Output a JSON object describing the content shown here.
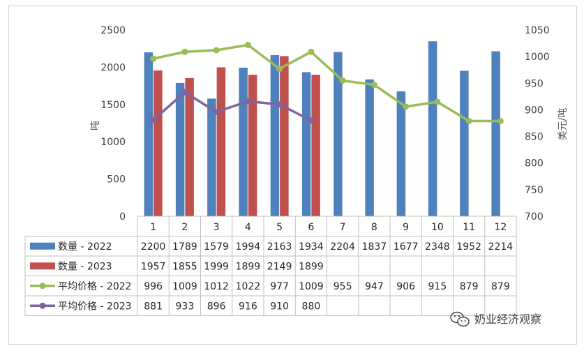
{
  "chart_data": {
    "type": "bar",
    "categories": [
      "1",
      "2",
      "3",
      "4",
      "5",
      "6",
      "7",
      "8",
      "9",
      "10",
      "11",
      "12"
    ],
    "ylabel": "吨",
    "y2label": "美元/吨",
    "ylim": [
      0,
      2500
    ],
    "yticks": [
      "0",
      "500",
      "1000",
      "1500",
      "2000",
      "2500"
    ],
    "y2lim": [
      700,
      1050
    ],
    "y2ticks": [
      "700",
      "750",
      "800",
      "850",
      "900",
      "950",
      "1000",
      "1050"
    ],
    "grid": false,
    "legend": "data-table",
    "series": [
      {
        "name": "数量 - 2022",
        "kind": "bar",
        "axis": "left",
        "color": "#4f81bd",
        "values": [
          2200,
          1789,
          1579,
          1994,
          2163,
          1934,
          2204,
          1837,
          1677,
          2348,
          1952,
          2214
        ]
      },
      {
        "name": "数量 - 2023",
        "kind": "bar",
        "axis": "left",
        "color": "#c0504d",
        "values": [
          1957,
          1855,
          1999,
          1899,
          2149,
          1899,
          null,
          null,
          null,
          null,
          null,
          null
        ]
      },
      {
        "name": "平均价格 - 2022",
        "kind": "line",
        "axis": "right",
        "color": "#9bbb59",
        "values": [
          996,
          1009,
          1012,
          1022,
          977,
          1009,
          955,
          947,
          906,
          915,
          879,
          879
        ]
      },
      {
        "name": "平均价格 - 2023",
        "kind": "line",
        "axis": "right",
        "color": "#8064a2",
        "values": [
          881,
          933,
          896,
          916,
          910,
          880,
          null,
          null,
          null,
          null,
          null,
          null
        ]
      }
    ]
  },
  "watermark": "奶业经济观察"
}
